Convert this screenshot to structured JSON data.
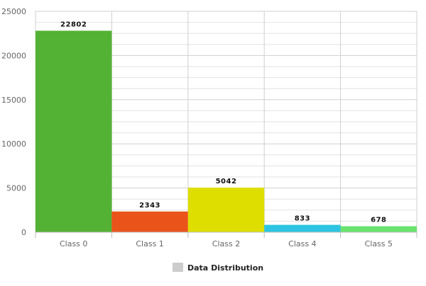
{
  "chart_data": {
    "type": "bar",
    "categories": [
      "Class 0",
      "Class 1",
      "Class 2",
      "Class 4",
      "Class 5"
    ],
    "series": [
      {
        "name": "Data Distribution",
        "values": [
          22802,
          2343,
          5042,
          833,
          678
        ],
        "colors": [
          "#53b233",
          "#ea541b",
          "#dedf00",
          "#2dc4e1",
          "#6ae36e"
        ]
      }
    ],
    "data_labels": [
      "22802",
      "2343",
      "5042",
      "833",
      "678"
    ],
    "y_ticks": [
      "0",
      "5000",
      "10000",
      "15000",
      "20000",
      "25000"
    ],
    "ylim": [
      0,
      25000
    ],
    "grid": true,
    "legend": {
      "position": "bottom",
      "swatch_color": "#cccccc"
    }
  }
}
